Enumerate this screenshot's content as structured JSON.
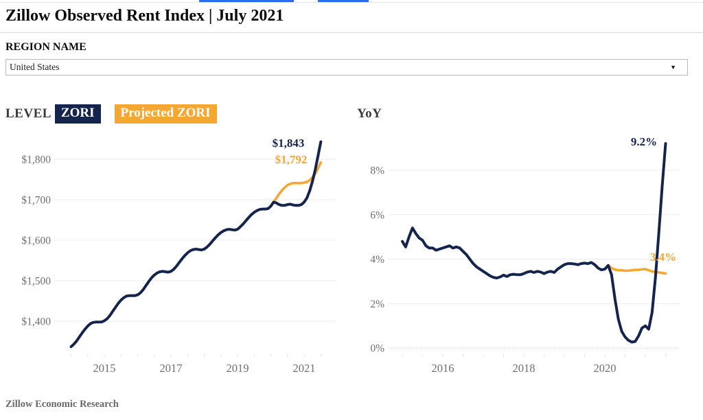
{
  "header": {
    "title": "Zillow Observed Rent Index | July 2021",
    "region_label": "REGION NAME",
    "region_value": "United States"
  },
  "footer": {
    "text": "Zillow Economic Research"
  },
  "colors": {
    "navy": "#14244D",
    "orange": "#F5A733",
    "grid": "#ECECEC",
    "grid_dotted": "#C4C4C4",
    "minor_tick": "#E3E3E3",
    "axis_text": "#6F6F6F",
    "blue_fragment": "#2E6BF0"
  },
  "chart_data": [
    {
      "type": "line",
      "title": "LEVEL",
      "legend": [
        {
          "label": "ZORI",
          "color": "navy"
        },
        {
          "label": "Projected ZORI",
          "color": "orange"
        }
      ],
      "x_ticks": [
        2015,
        2017,
        2019,
        2021
      ],
      "x_range": [
        2014.0,
        2021.5
      ],
      "ylim": [
        1330,
        1860
      ],
      "grid": "on",
      "y_ticks": [
        {
          "value": 1800,
          "label": "$1,800"
        },
        {
          "value": 1700,
          "label": "$1,700"
        },
        {
          "value": 1600,
          "label": "$1,600"
        },
        {
          "value": 1500,
          "label": "$1,500"
        },
        {
          "value": 1400,
          "label": "$1,400"
        }
      ],
      "series": [
        {
          "name": "ZORI",
          "color": "navy",
          "start_year": 2014.0,
          "cadence": "monthly",
          "end_label": "$1,843",
          "values": [
            1337,
            1343,
            1351,
            1361,
            1371,
            1380,
            1388,
            1394,
            1397,
            1398,
            1398,
            1398,
            1401,
            1406,
            1414,
            1424,
            1434,
            1444,
            1452,
            1458,
            1462,
            1463,
            1463,
            1463,
            1465,
            1470,
            1478,
            1488,
            1498,
            1507,
            1514,
            1519,
            1522,
            1523,
            1522,
            1521,
            1523,
            1528,
            1536,
            1545,
            1554,
            1562,
            1569,
            1574,
            1577,
            1578,
            1577,
            1576,
            1578,
            1583,
            1590,
            1598,
            1606,
            1613,
            1619,
            1623,
            1626,
            1627,
            1626,
            1625,
            1627,
            1633,
            1640,
            1648,
            1656,
            1663,
            1669,
            1673,
            1676,
            1677,
            1677,
            1678,
            1684,
            1694,
            1692,
            1688,
            1686,
            1686,
            1688,
            1689,
            1687,
            1686,
            1686,
            1688,
            1694,
            1704,
            1722,
            1745,
            1774,
            1808,
            1843
          ]
        },
        {
          "name": "Projected ZORI",
          "color": "orange",
          "start_year": 2020.0833,
          "cadence": "monthly",
          "end_label": "$1,792",
          "values": [
            1694,
            1704,
            1714,
            1723,
            1730,
            1736,
            1739,
            1741,
            1741,
            1741,
            1741,
            1742,
            1744,
            1748,
            1755,
            1764,
            1777,
            1792
          ]
        }
      ]
    },
    {
      "type": "line",
      "title": "YoY",
      "x_ticks": [
        2016,
        2018,
        2020
      ],
      "x_range": [
        2015.0,
        2021.5
      ],
      "ylim": [
        0,
        9.5
      ],
      "grid": "on",
      "y_ticks": [
        {
          "value": 8,
          "label": "8%"
        },
        {
          "value": 6,
          "label": "6%"
        },
        {
          "value": 4,
          "label": "4%"
        },
        {
          "value": 2,
          "label": "2%"
        },
        {
          "value": 0,
          "label": "0%",
          "dotted": true
        }
      ],
      "series": [
        {
          "name": "ZORI YoY",
          "color": "navy",
          "start_year": 2015.0,
          "cadence": "monthly",
          "end_label": "9.2%",
          "values": [
            4.8,
            4.55,
            5.0,
            5.4,
            5.15,
            4.95,
            4.85,
            4.6,
            4.5,
            4.5,
            4.4,
            4.45,
            4.5,
            4.55,
            4.6,
            4.5,
            4.55,
            4.5,
            4.35,
            4.2,
            4.0,
            3.8,
            3.65,
            3.55,
            3.45,
            3.35,
            3.25,
            3.18,
            3.15,
            3.2,
            3.28,
            3.22,
            3.3,
            3.32,
            3.3,
            3.3,
            3.35,
            3.42,
            3.45,
            3.4,
            3.45,
            3.42,
            3.35,
            3.42,
            3.45,
            3.4,
            3.55,
            3.65,
            3.75,
            3.8,
            3.8,
            3.78,
            3.75,
            3.8,
            3.82,
            3.8,
            3.85,
            3.75,
            3.6,
            3.52,
            3.55,
            3.72,
            3.3,
            2.2,
            1.3,
            0.75,
            0.5,
            0.35,
            0.27,
            0.3,
            0.55,
            0.9,
            1.0,
            0.85,
            1.6,
            3.2,
            5.2,
            7.3,
            9.2
          ]
        },
        {
          "name": "Projected ZORI YoY",
          "color": "orange",
          "start_year": 2020.0833,
          "cadence": "monthly",
          "end_label": "3.4%",
          "values": [
            3.72,
            3.6,
            3.53,
            3.5,
            3.5,
            3.48,
            3.48,
            3.5,
            3.52,
            3.52,
            3.54,
            3.55,
            3.5,
            3.45,
            3.42,
            3.4,
            3.38,
            3.35
          ]
        }
      ]
    }
  ]
}
